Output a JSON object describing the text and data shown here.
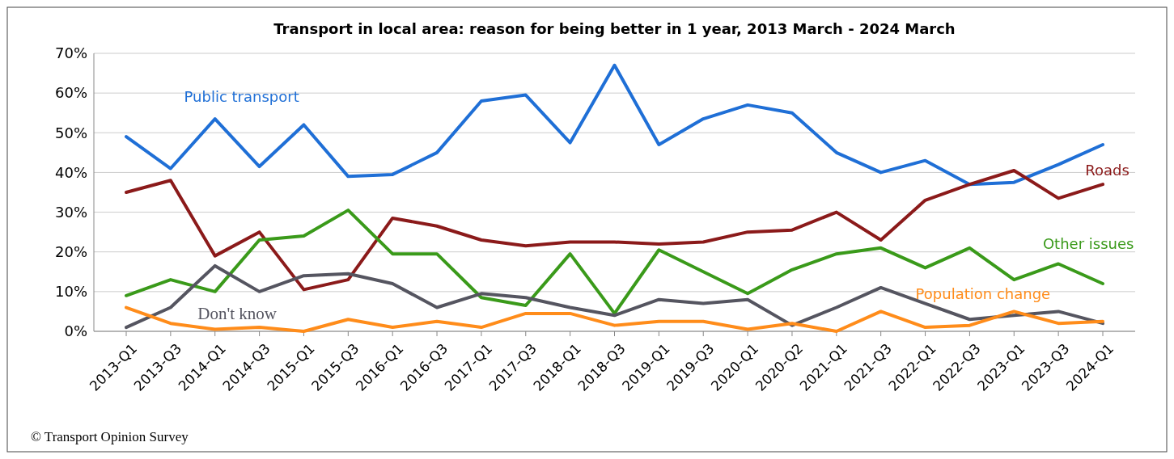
{
  "chart_data": {
    "type": "line",
    "title": "Transport in local area: reason for being better in 1 year, 2013 March - 2024 March",
    "categories": [
      "2013-Q1",
      "2013-Q3",
      "2014-Q1",
      "2014-Q3",
      "2015-Q1",
      "2015-Q3",
      "2016-Q1",
      "2016-Q3",
      "2017-Q1",
      "2017-Q3",
      "2018-Q1",
      "2018-Q3",
      "2019-Q1",
      "2019-Q3",
      "2020-Q1",
      "2020-Q2",
      "2021-Q1",
      "2021-Q3",
      "2022-Q1",
      "2022-Q3",
      "2023-Q1",
      "2023-Q3",
      "2024-Q1"
    ],
    "series": [
      {
        "name": "Public transport",
        "color": "#1f6fd6",
        "values": [
          49,
          41,
          53.5,
          41.5,
          52,
          39,
          39.5,
          45,
          58,
          59.5,
          47.5,
          67,
          47,
          53.5,
          57,
          55,
          45,
          40,
          43,
          37,
          37.5,
          42,
          47
        ]
      },
      {
        "name": "Roads",
        "color": "#8b1a1a",
        "values": [
          35,
          38,
          19,
          25,
          10.5,
          13,
          28.5,
          26.5,
          23,
          21.5,
          22.5,
          22.5,
          22,
          22.5,
          25,
          25.5,
          30,
          23,
          33,
          37,
          40.5,
          33.5,
          37
        ]
      },
      {
        "name": "Other issues",
        "color": "#3a9a1a",
        "values": [
          9,
          13,
          10,
          23,
          24,
          30.5,
          19.5,
          19.5,
          8.5,
          6.5,
          19.5,
          4.5,
          20.5,
          15,
          9.5,
          15.5,
          19.5,
          21,
          16,
          21,
          13,
          17,
          12
        ]
      },
      {
        "name": "Don't know",
        "color": "#555560",
        "values": [
          1,
          6,
          16.5,
          10,
          14,
          14.5,
          12,
          6,
          9.5,
          8.5,
          6,
          4,
          8,
          7,
          8,
          1.5,
          6,
          11,
          7,
          3,
          4,
          5,
          2
        ]
      },
      {
        "name": "Population change",
        "color": "#ff8c1a",
        "values": [
          6,
          2,
          0.5,
          1,
          0,
          3,
          1,
          2.5,
          1,
          4.5,
          4.5,
          1.5,
          2.5,
          2.5,
          0.5,
          2,
          0,
          5,
          1,
          1.5,
          5,
          2,
          2.5
        ]
      }
    ],
    "ylim": [
      0,
      70
    ],
    "yticks": [
      {
        "value": 0,
        "label": "0%"
      },
      {
        "value": 10,
        "label": "10%"
      },
      {
        "value": 20,
        "label": "20%"
      },
      {
        "value": 30,
        "label": "30%"
      },
      {
        "value": 40,
        "label": "40%"
      },
      {
        "value": 50,
        "label": "50%"
      },
      {
        "value": 60,
        "label": "60%"
      },
      {
        "value": 70,
        "label": "70%"
      }
    ],
    "grid": "y",
    "marker": "none",
    "line_style": "solid",
    "annotations": [
      "© Transport Opinion Survey"
    ]
  }
}
